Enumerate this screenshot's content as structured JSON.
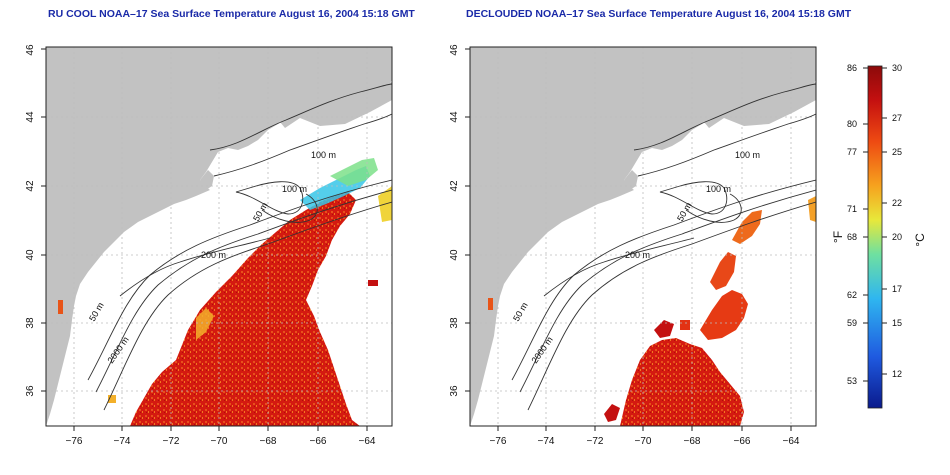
{
  "left_panel": {
    "title": "RU COOL NOAA–17 Sea Surface Temperature August 16, 2004 15:18 GMT"
  },
  "right_panel": {
    "title": "DECLOUDED NOAA–17 Sea Surface Temperature August 16, 2004 15:18 GMT"
  },
  "axes": {
    "x_ticks": [
      "−76",
      "−74",
      "−72",
      "−70",
      "−68",
      "−66",
      "−64"
    ],
    "y_ticks": [
      "36",
      "38",
      "40",
      "42",
      "44",
      "46"
    ],
    "x_range": [
      -77,
      -63
    ],
    "y_range": [
      35,
      46
    ]
  },
  "contour_labels": {
    "m100a": "100 m",
    "m100b": "100 m",
    "m50a": "50 m",
    "m200": "200 m",
    "m50b": "50 m",
    "m2000": "2000 m"
  },
  "colorbar": {
    "f_label": "°F",
    "c_label": "°C",
    "f_ticks": [
      "86",
      "80",
      "77",
      "71",
      "68",
      "62",
      "59",
      "53"
    ],
    "c_ticks": [
      "30",
      "27",
      "25",
      "22",
      "20",
      "17",
      "15",
      "12"
    ],
    "range_c": [
      10,
      30
    ],
    "colors": [
      "#0a1a8c",
      "#1f5ae0",
      "#2fb6f0",
      "#6fe0a0",
      "#e8e83a",
      "#f6a21e",
      "#ee4a12",
      "#c41010",
      "#8c0a0a"
    ]
  },
  "colors": {
    "land": "#c2c2c2",
    "title": "#1a2aa8",
    "grid": "#bdbdbd"
  }
}
